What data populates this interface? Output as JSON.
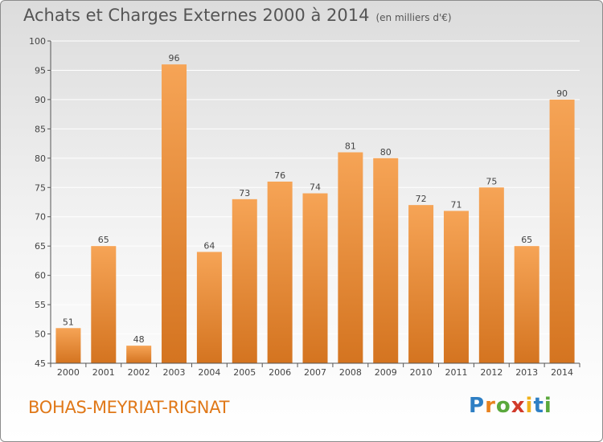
{
  "title": "Achats et Charges Externes 2000 à 2014",
  "unit_label": "(en milliers d'€)",
  "commune": "BOHAS-MEYRIAT-RIGNAT",
  "brand": {
    "letters": [
      {
        "ch": "P",
        "color": "#2e7fc4"
      },
      {
        "ch": "r",
        "color": "#e8821f"
      },
      {
        "ch": "o",
        "color": "#5aa83c"
      },
      {
        "ch": "x",
        "color": "#d13a2a"
      },
      {
        "ch": "i",
        "color": "#f0b21c"
      },
      {
        "ch": "t",
        "color": "#2e7fc4"
      },
      {
        "ch": "i",
        "color": "#5aa83c"
      }
    ]
  },
  "colors": {
    "bar_top": "#f6a456",
    "bar_bottom": "#d47420",
    "axis": "#555555",
    "grid": "#ffffff"
  },
  "chart_data": {
    "type": "bar",
    "categories": [
      "2000",
      "2001",
      "2002",
      "2003",
      "2004",
      "2005",
      "2006",
      "2007",
      "2008",
      "2009",
      "2010",
      "2011",
      "2012",
      "2013",
      "2014"
    ],
    "values": [
      51,
      65,
      48,
      96,
      64,
      73,
      76,
      74,
      81,
      80,
      72,
      71,
      75,
      65,
      90
    ],
    "ylim": [
      45,
      100
    ],
    "yticks": [
      45,
      50,
      55,
      60,
      65,
      70,
      75,
      80,
      85,
      90,
      95,
      100
    ],
    "grid": true,
    "title": "Achats et Charges Externes 2000 à 2014",
    "xlabel": "",
    "ylabel": ""
  }
}
